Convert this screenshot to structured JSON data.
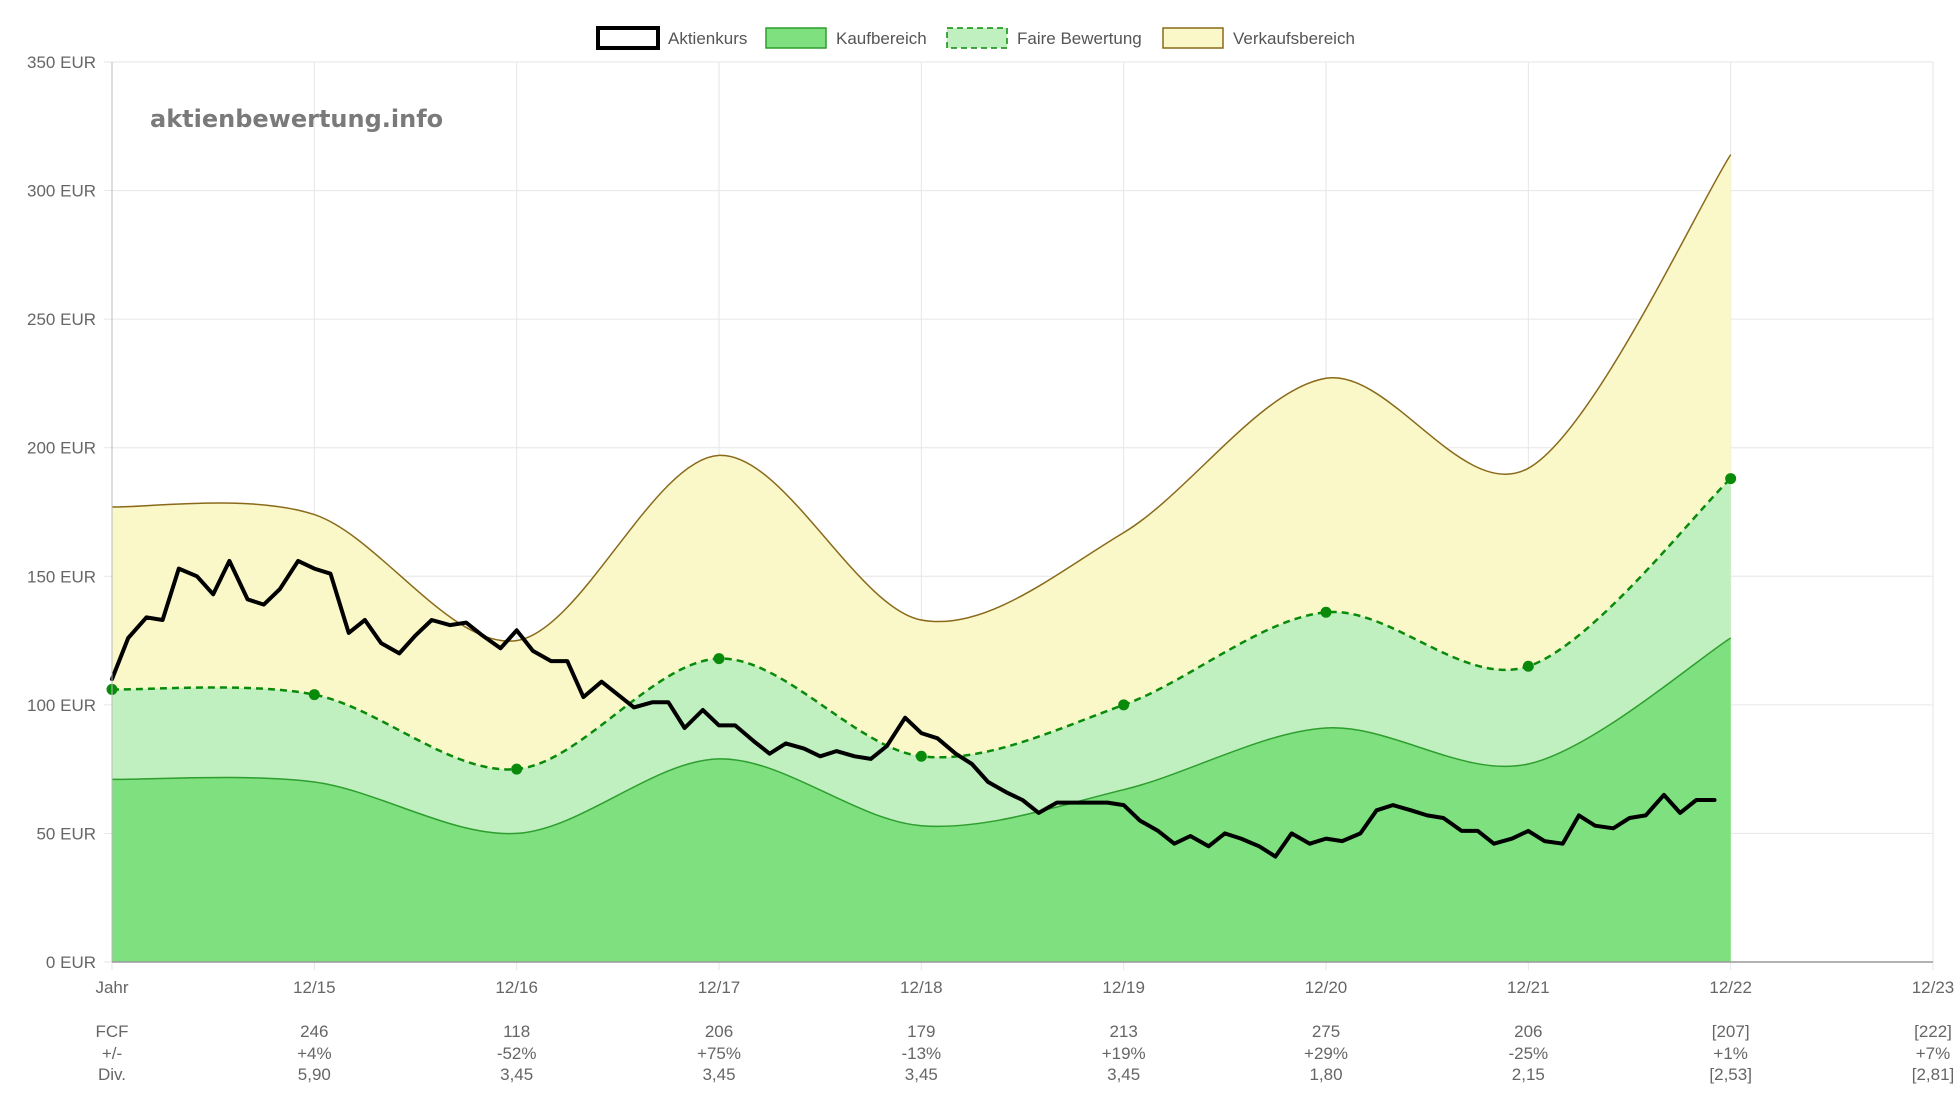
{
  "watermark": "aktienbewertung.info",
  "chart_data": {
    "type": "area",
    "y_unit": "EUR",
    "ylim": [
      0,
      350
    ],
    "y_ticks": [
      0,
      50,
      100,
      150,
      200,
      250,
      300,
      350
    ],
    "y_tick_labels": [
      "0 EUR",
      "50 EUR",
      "100 EUR",
      "150 EUR",
      "200 EUR",
      "250 EUR",
      "300 EUR",
      "350 EUR"
    ],
    "x_labels": [
      "Jahr",
      "12/15",
      "12/16",
      "12/17",
      "12/18",
      "12/19",
      "12/20",
      "12/21",
      "12/22",
      "12/23"
    ],
    "grid": true,
    "legend_position": "top-center",
    "legend": [
      {
        "label": "Aktienkurs",
        "fill": "#ffffff",
        "stroke": "#000000",
        "dash": false,
        "thick": true
      },
      {
        "label": "Kaufbereich",
        "fill": "#7ee07e",
        "stroke": "#2e9e2e",
        "dash": false,
        "thick": false
      },
      {
        "label": "Faire Bewertung",
        "fill": "#c0efc0",
        "stroke": "#0a8a0a",
        "dash": true,
        "thick": false
      },
      {
        "label": "Verkaufsbereich",
        "fill": "#faf8c8",
        "stroke": "#8a6a1a",
        "dash": false,
        "thick": false
      }
    ],
    "colors": {
      "kauf_fill": "#7ee07e",
      "kauf_line": "#2e9e2e",
      "fair_fill": "#c0efc0",
      "fair_line": "#0a8a0a",
      "verkauf_fill": "#faf8c8",
      "verkauf_line": "#8a6a1a",
      "price_line": "#000000",
      "grid": "#e6e6e6",
      "axis": "#bbbbbb"
    },
    "series": [
      {
        "name": "Kaufbereich",
        "x": [
          0,
          1,
          2,
          3,
          4,
          5,
          6,
          7,
          8
        ],
        "values": [
          71,
          70,
          50,
          79,
          53,
          67,
          91,
          77,
          126
        ]
      },
      {
        "name": "Faire Bewertung",
        "x": [
          0,
          1,
          2,
          3,
          4,
          5,
          6,
          7,
          8
        ],
        "values": [
          106,
          104,
          75,
          118,
          80,
          100,
          136,
          115,
          188
        ]
      },
      {
        "name": "Verkaufsbereich",
        "x": [
          0,
          1,
          2,
          3,
          4,
          5,
          6,
          7,
          8
        ],
        "values": [
          177,
          174,
          125,
          197,
          133,
          167,
          227,
          192,
          314
        ]
      },
      {
        "name": "Aktienkurs",
        "x": [
          0,
          0.08,
          0.17,
          0.25,
          0.33,
          0.42,
          0.5,
          0.58,
          0.67,
          0.75,
          0.83,
          0.92,
          1.0,
          1.08,
          1.17,
          1.25,
          1.33,
          1.42,
          1.5,
          1.58,
          1.67,
          1.75,
          1.83,
          1.92,
          2.0,
          2.08,
          2.17,
          2.25,
          2.33,
          2.42,
          2.5,
          2.58,
          2.67,
          2.75,
          2.83,
          2.92,
          3.0,
          3.08,
          3.17,
          3.25,
          3.33,
          3.42,
          3.5,
          3.58,
          3.67,
          3.75,
          3.83,
          3.92,
          4.0,
          4.08,
          4.17,
          4.25,
          4.33,
          4.42,
          4.5,
          4.58,
          4.67,
          4.75,
          4.83,
          4.92,
          5.0,
          5.08,
          5.17,
          5.25,
          5.33,
          5.42,
          5.5,
          5.58,
          5.67,
          5.75,
          5.83,
          5.92,
          6.0,
          6.08,
          6.17,
          6.25,
          6.33,
          6.42,
          6.5,
          6.58,
          6.67,
          6.75,
          6.83,
          6.92,
          7.0,
          7.08,
          7.17,
          7.25,
          7.33,
          7.42,
          7.5,
          7.58,
          7.67,
          7.75,
          7.83,
          7.92
        ],
        "values": [
          110,
          126,
          134,
          133,
          153,
          150,
          143,
          156,
          141,
          139,
          145,
          156,
          153,
          151,
          128,
          133,
          124,
          120,
          127,
          133,
          131,
          132,
          127,
          122,
          129,
          121,
          117,
          117,
          103,
          109,
          104,
          99,
          101,
          101,
          91,
          98,
          92,
          92,
          86,
          81,
          85,
          83,
          80,
          82,
          80,
          79,
          84,
          95,
          89,
          87,
          81,
          77,
          70,
          66,
          63,
          58,
          62,
          62,
          62,
          62,
          61,
          55,
          51,
          46,
          49,
          45,
          50,
          48,
          45,
          41,
          50,
          46,
          48,
          47,
          50,
          59,
          61,
          59,
          57,
          56,
          51,
          51,
          46,
          48,
          51,
          47,
          46,
          57,
          53,
          52,
          56,
          57,
          65,
          58,
          63,
          63
        ]
      }
    ]
  },
  "table": {
    "rows": [
      {
        "label": "FCF",
        "values": [
          "246",
          "118",
          "206",
          "179",
          "213",
          "275",
          "206",
          "[207]",
          "[222]"
        ]
      },
      {
        "label": "+/-",
        "values": [
          "+4%",
          "-52%",
          "+75%",
          "-13%",
          "+19%",
          "+29%",
          "-25%",
          "+1%",
          "+7%"
        ]
      },
      {
        "label": "Div.",
        "values": [
          "5,90",
          "3,45",
          "3,45",
          "3,45",
          "3,45",
          "1,80",
          "2,15",
          "[2,53]",
          "[2,81]"
        ]
      }
    ]
  }
}
